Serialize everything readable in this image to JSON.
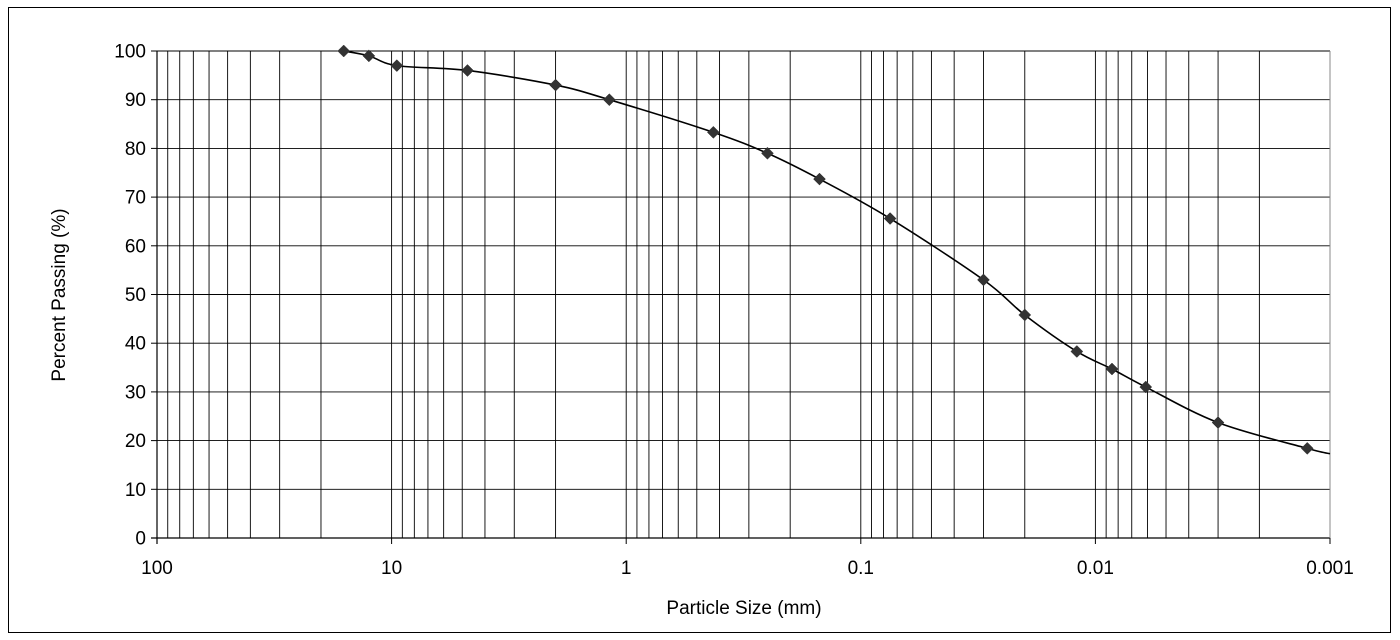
{
  "chart_data": {
    "type": "line",
    "title": "",
    "xlabel": "Particle Size (mm)",
    "ylabel": "Percent Passing (%)",
    "x_scale": "log",
    "x_reversed": true,
    "xlim": [
      100,
      0.001
    ],
    "ylim": [
      0,
      100
    ],
    "x_ticks": [
      {
        "value": 100,
        "label": "100"
      },
      {
        "value": 10,
        "label": "10"
      },
      {
        "value": 1,
        "label": "1"
      },
      {
        "value": 0.1,
        "label": "0.1"
      },
      {
        "value": 0.01,
        "label": "0.01"
      },
      {
        "value": 0.001,
        "label": "0.001"
      }
    ],
    "y_ticks": [
      {
        "value": 0,
        "label": "0"
      },
      {
        "value": 10,
        "label": "10"
      },
      {
        "value": 20,
        "label": "20"
      },
      {
        "value": 30,
        "label": "30"
      },
      {
        "value": 40,
        "label": "40"
      },
      {
        "value": 50,
        "label": "50"
      },
      {
        "value": 60,
        "label": "60"
      },
      {
        "value": 70,
        "label": "70"
      },
      {
        "value": 80,
        "label": "80"
      },
      {
        "value": 90,
        "label": "90"
      },
      {
        "value": 100,
        "label": "100"
      }
    ],
    "grid": true,
    "legend": "none",
    "line_color": "#000000",
    "marker_color": "#333333",
    "marker": "diamond",
    "series": [
      {
        "points": [
          {
            "x": 16,
            "y": 100
          },
          {
            "x": 12.5,
            "y": 99
          },
          {
            "x": 9.5,
            "y": 97
          },
          {
            "x": 4.75,
            "y": 96
          },
          {
            "x": 2,
            "y": 93
          },
          {
            "x": 1.18,
            "y": 90
          },
          {
            "x": 0.425,
            "y": 83.3
          },
          {
            "x": 0.25,
            "y": 79
          },
          {
            "x": 0.15,
            "y": 73.7
          },
          {
            "x": 0.075,
            "y": 65.6
          },
          {
            "x": 0.03,
            "y": 53
          },
          {
            "x": 0.02,
            "y": 45.8
          },
          {
            "x": 0.012,
            "y": 38.3
          },
          {
            "x": 0.0085,
            "y": 34.7
          },
          {
            "x": 0.0061,
            "y": 31
          },
          {
            "x": 0.003,
            "y": 23.7
          },
          {
            "x": 0.00125,
            "y": 18.4
          }
        ],
        "line_extends_to": {
          "x": 0.001,
          "y": 17.3
        }
      }
    ]
  }
}
